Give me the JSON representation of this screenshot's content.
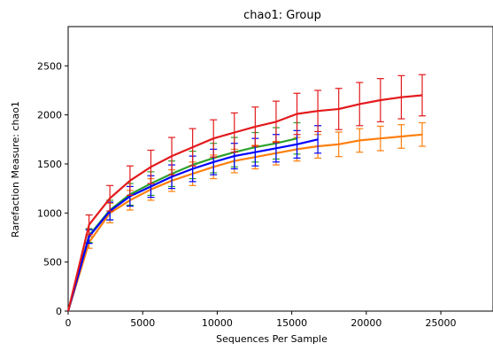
{
  "chart_data": {
    "type": "line",
    "title": "chao1: Group",
    "xlabel": "Sequences Per Sample",
    "ylabel": "Rarefaction Measure: chao1",
    "xlim": [
      0,
      28500
    ],
    "ylim": [
      0,
      2900
    ],
    "xticks": [
      0,
      5000,
      10000,
      15000,
      20000,
      25000
    ],
    "yticks": [
      0,
      500,
      1000,
      1500,
      2000,
      2500
    ],
    "xtick_labels": [
      "0",
      "5000",
      "10000",
      "15000",
      "20000",
      "25000"
    ],
    "ytick_labels": [
      "0",
      "500",
      "1000",
      "1500",
      "2000",
      "2500"
    ],
    "grid": false,
    "legend": false,
    "series": [
      {
        "color": "#ff7f0e",
        "x": [
          0,
          1400,
          2800,
          4150,
          5550,
          6950,
          8350,
          9750,
          11150,
          12550,
          13950,
          15350,
          16750,
          18150,
          19550,
          20950,
          22350,
          23750
        ],
        "y": [
          0,
          700,
          1000,
          1130,
          1240,
          1330,
          1400,
          1470,
          1530,
          1570,
          1610,
          1650,
          1680,
          1700,
          1740,
          1760,
          1780,
          1800
        ],
        "err": [
          0,
          60,
          100,
          100,
          110,
          110,
          120,
          120,
          120,
          120,
          120,
          120,
          120,
          125,
          120,
          125,
          120,
          120
        ]
      },
      {
        "color": "#2ca02c",
        "x": [
          0,
          1400,
          2800,
          4150,
          5550,
          6950,
          8350,
          9750,
          11150,
          12550,
          13950,
          15350
        ],
        "y": [
          0,
          770,
          1030,
          1190,
          1300,
          1400,
          1490,
          1560,
          1620,
          1670,
          1710,
          1760
        ],
        "err": [
          0,
          70,
          100,
          110,
          120,
          130,
          140,
          150,
          150,
          150,
          160,
          160
        ]
      },
      {
        "color": "#0000ff",
        "x": [
          0,
          1400,
          2800,
          4150,
          5550,
          6950,
          8350,
          9750,
          11150,
          12550,
          13950,
          15350,
          16750
        ],
        "y": [
          0,
          760,
          1020,
          1170,
          1270,
          1370,
          1450,
          1520,
          1580,
          1620,
          1660,
          1700,
          1750
        ],
        "err": [
          0,
          70,
          90,
          100,
          110,
          120,
          130,
          130,
          130,
          140,
          140,
          140,
          140
        ]
      },
      {
        "color": "#e31a1c",
        "x": [
          0,
          1400,
          2800,
          4150,
          5550,
          6950,
          8350,
          9750,
          11150,
          12550,
          13950,
          15350,
          16750,
          18150,
          19550,
          20950,
          22350,
          23750
        ],
        "y": [
          0,
          880,
          1150,
          1330,
          1470,
          1580,
          1670,
          1760,
          1820,
          1880,
          1930,
          2010,
          2040,
          2060,
          2110,
          2150,
          2180,
          2200
        ],
        "err": [
          0,
          100,
          130,
          150,
          170,
          190,
          190,
          190,
          200,
          200,
          210,
          210,
          210,
          210,
          220,
          220,
          220,
          210
        ]
      }
    ]
  }
}
